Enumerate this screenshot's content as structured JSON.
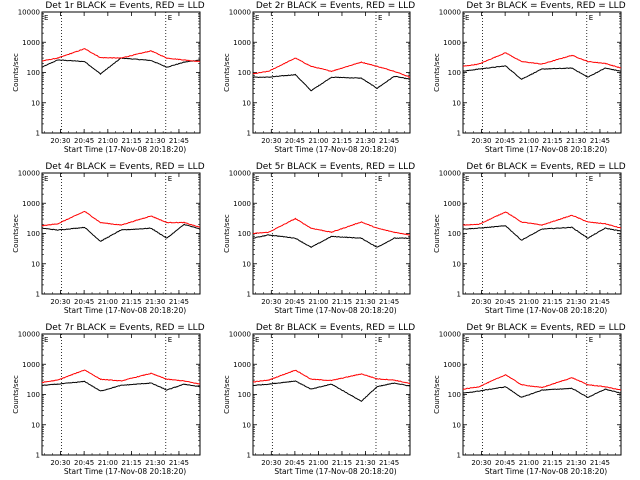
{
  "panels": [
    {
      "title": "Det 1r BLACK = Events, RED = LLD",
      "events": [
        150,
        260,
        230,
        90,
        300,
        250,
        150,
        220,
        260
      ],
      "lld": [
        240,
        300,
        610,
        310,
        300,
        520,
        300,
        260,
        230
      ]
    },
    {
      "title": "Det 2r BLACK = Events, RED = LLD",
      "events": [
        70,
        70,
        85,
        25,
        70,
        65,
        30,
        75,
        60
      ],
      "lld": [
        90,
        110,
        300,
        160,
        110,
        220,
        160,
        110,
        70
      ]
    },
    {
      "title": "Det 3r BLACK = Events, RED = LLD",
      "events": [
        110,
        130,
        165,
        60,
        130,
        140,
        70,
        140,
        110
      ],
      "lld": [
        160,
        190,
        450,
        230,
        190,
        370,
        230,
        200,
        140
      ]
    },
    {
      "title": "Det 4r BLACK = Events, RED = LLD",
      "events": [
        150,
        130,
        160,
        55,
        130,
        150,
        70,
        200,
        140
      ],
      "lld": [
        180,
        210,
        540,
        230,
        190,
        380,
        230,
        230,
        160
      ]
    },
    {
      "title": "Det 5r BLACK = Events, RED = LLD",
      "events": [
        70,
        90,
        70,
        35,
        80,
        70,
        35,
        70,
        70
      ],
      "lld": [
        100,
        110,
        310,
        150,
        110,
        240,
        150,
        110,
        90
      ]
    },
    {
      "title": "Det 6r BLACK = Events, RED = LLD",
      "events": [
        140,
        150,
        180,
        60,
        140,
        160,
        70,
        150,
        120
      ],
      "lld": [
        190,
        200,
        520,
        240,
        190,
        400,
        240,
        210,
        150
      ]
    },
    {
      "title": "Det 7r BLACK = Events, RED = LLD",
      "events": [
        200,
        220,
        270,
        130,
        200,
        240,
        140,
        220,
        180
      ],
      "lld": [
        250,
        300,
        650,
        320,
        280,
        500,
        320,
        280,
        220
      ]
    },
    {
      "title": "Det 8r BLACK = Events, RED = LLD",
      "events": [
        200,
        220,
        280,
        150,
        220,
        60,
        180,
        240,
        190
      ],
      "lld": [
        260,
        300,
        640,
        320,
        290,
        480,
        330,
        300,
        230
      ]
    },
    {
      "title": "Det 9r BLACK = Events, RED = LLD",
      "events": [
        110,
        130,
        180,
        80,
        140,
        160,
        80,
        150,
        110
      ],
      "lld": [
        150,
        180,
        450,
        210,
        170,
        360,
        210,
        180,
        140
      ]
    }
  ],
  "xtick_labels": [
    "20:30",
    "20:45",
    "21:00",
    "21:15",
    "21:30",
    "21:45"
  ],
  "xlabel": "Start Time (17-Nov-08 20:18:20)",
  "ylabel": "Counts/sec",
  "corner_mark": "E",
  "ytick_labels": [
    "1",
    "10",
    "100",
    "1000",
    "10000"
  ],
  "colors": {
    "events": "#000000",
    "lld": "#ff0000",
    "axes": "#000000",
    "background": "#ffffff"
  },
  "chart_data": {
    "type": "line",
    "layout": "3x3 grid",
    "x_unit": "minutes after 20:18:20",
    "x": [
      0,
      10,
      27,
      37,
      50,
      69,
      79,
      90,
      100
    ],
    "xlim": [
      "20:18:20",
      "21:58:20"
    ],
    "ylim": [
      1,
      10000
    ],
    "yscale": "log",
    "dotted_verticals": [
      "20:30:40",
      "21:36:40"
    ],
    "series": [
      {
        "name": "BLACK = Events",
        "color": "#000000"
      },
      {
        "name": "RED = LLD",
        "color": "#ff0000"
      }
    ]
  }
}
